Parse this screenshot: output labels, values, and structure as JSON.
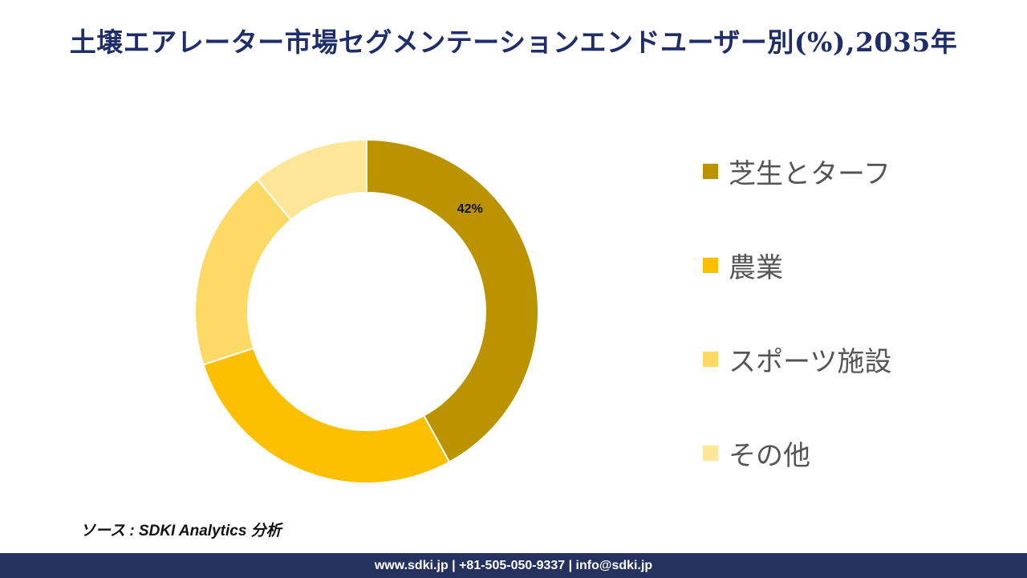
{
  "title": "土壌エアレーター市場セグメンテーションエンドユーザー別(%),2035年",
  "chart_data": {
    "type": "pie",
    "variant": "donut",
    "title": "土壌エアレーター市場セグメンテーションエンドユーザー別(%),2035年",
    "categories": [
      "芝生とターフ",
      "農業",
      "スポーツ施設",
      "その他"
    ],
    "values": [
      42,
      28,
      19,
      11
    ],
    "data_labels": [
      "42%",
      "",
      "",
      ""
    ],
    "colors": [
      "#bb9200",
      "#fcc000",
      "#fdd965",
      "#fee699"
    ],
    "legend_position": "right"
  },
  "source": "ソース : SDKI Analytics 分析",
  "footer": "www.sdki.jp | +81-505-050-9337 | info@sdki.jp"
}
